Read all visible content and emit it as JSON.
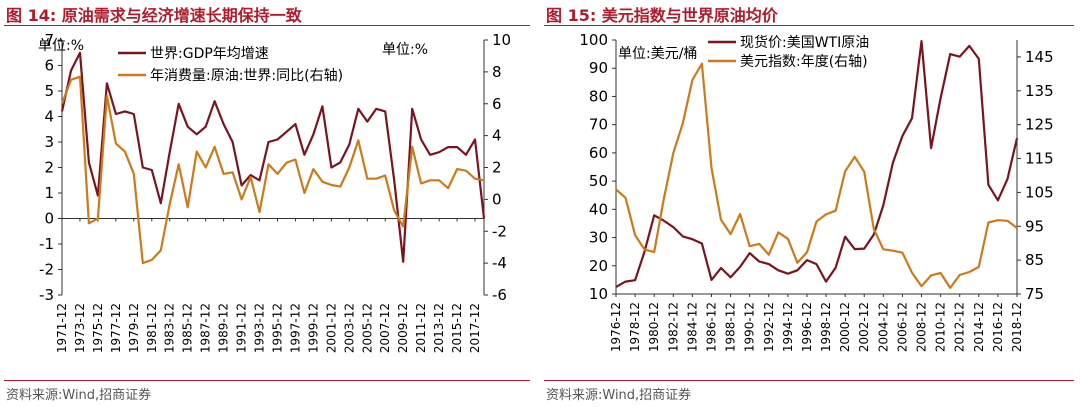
{
  "colors": {
    "red": "#b01c2e",
    "dark_red": "#7a1420",
    "orange": "#cc7a1a"
  },
  "left_panel": {
    "title": "图 14:  原油需求与经济增速长期保持一致",
    "source": "资料来源:Wind,招商证券"
  },
  "right_panel": {
    "title": "图 15:  美元指数与世界原油均价",
    "source": "资料来源:Wind,招商证券"
  },
  "chart_data": [
    {
      "type": "line",
      "title": "原油需求与经济增速长期保持一致",
      "unit_left": "单位:%",
      "unit_right": "单位:%",
      "x": [
        1971,
        1972,
        1973,
        1974,
        1975,
        1976,
        1977,
        1978,
        1979,
        1980,
        1981,
        1982,
        1983,
        1984,
        1985,
        1986,
        1987,
        1988,
        1989,
        1990,
        1991,
        1992,
        1993,
        1994,
        1995,
        1996,
        1997,
        1998,
        1999,
        2000,
        2001,
        2002,
        2003,
        2004,
        2005,
        2006,
        2007,
        2008,
        2009,
        2010,
        2011,
        2012,
        2013,
        2014,
        2015,
        2016,
        2017,
        2018
      ],
      "x_tick_labels": [
        "1971-12",
        "1973-12",
        "1975-12",
        "1977-12",
        "1979-12",
        "1981-12",
        "1983-12",
        "1985-12",
        "1987-12",
        "1989-12",
        "1991-12",
        "1993-12",
        "1995-12",
        "1997-12",
        "1999-12",
        "2001-12",
        "2003-12",
        "2005-12",
        "2007-12",
        "2009-12",
        "2011-12",
        "2013-12",
        "2015-12",
        "2017-12"
      ],
      "ylim_left": [
        -3,
        7
      ],
      "ylim_right": [
        -6,
        10
      ],
      "left_ticks": [
        "7",
        "6",
        "5",
        "4",
        "3",
        "2",
        "1",
        "0",
        "-1",
        "-2",
        "-3"
      ],
      "right_ticks": [
        "10",
        "8",
        "6",
        "4",
        "2",
        "0",
        "-2",
        "-4",
        "-6"
      ],
      "series": [
        {
          "name": "世界:GDP年均增速",
          "axis": "left",
          "color": "#7a1420",
          "values": [
            4.2,
            5.8,
            6.5,
            2.2,
            0.9,
            5.3,
            4.1,
            4.2,
            4.1,
            2.0,
            1.9,
            0.6,
            2.6,
            4.5,
            3.6,
            3.3,
            3.6,
            4.6,
            3.7,
            3.0,
            1.3,
            1.7,
            1.5,
            3.0,
            3.1,
            3.4,
            3.7,
            2.5,
            3.3,
            4.4,
            2.0,
            2.2,
            2.9,
            4.3,
            3.8,
            4.3,
            4.2,
            1.5,
            -1.7,
            4.3,
            3.1,
            2.5,
            2.6,
            2.8,
            2.8,
            2.5,
            3.1,
            0.0
          ]
        },
        {
          "name": "年消费量:原油:世界:同比(右轴)",
          "axis": "right",
          "color": "#cc7a1a",
          "values": [
            6.0,
            7.5,
            7.7,
            -1.5,
            -1.2,
            6.5,
            3.5,
            3.0,
            1.6,
            -4.0,
            -3.8,
            -3.2,
            -0.3,
            2.2,
            -0.5,
            3.0,
            2.0,
            3.3,
            1.6,
            1.7,
            0.0,
            1.4,
            -0.8,
            2.2,
            1.6,
            2.3,
            2.5,
            0.4,
            1.9,
            1.1,
            0.9,
            0.8,
            2.0,
            3.7,
            1.3,
            1.3,
            1.5,
            -0.7,
            -1.7,
            3.3,
            1.0,
            1.2,
            1.2,
            0.7,
            1.9,
            1.8,
            1.3,
            1.2
          ]
        }
      ]
    },
    {
      "type": "line",
      "title": "美元指数与世界原油均价",
      "unit_left": "单位:美元/桶",
      "x": [
        1976,
        1977,
        1978,
        1979,
        1980,
        1981,
        1982,
        1983,
        1984,
        1985,
        1986,
        1987,
        1988,
        1989,
        1990,
        1991,
        1992,
        1993,
        1994,
        1995,
        1996,
        1997,
        1998,
        1999,
        2000,
        2001,
        2002,
        2003,
        2004,
        2005,
        2006,
        2007,
        2008,
        2009,
        2010,
        2011,
        2012,
        2013,
        2014,
        2015,
        2016,
        2017,
        2018
      ],
      "x_tick_labels": [
        "1976-12",
        "1978-12",
        "1980-12",
        "1982-12",
        "1984-12",
        "1986-12",
        "1988-12",
        "1990-12",
        "1992-12",
        "1994-12",
        "1996-12",
        "1998-12",
        "2000-12",
        "2002-12",
        "2004-12",
        "2006-12",
        "2008-12",
        "2010-12",
        "2012-12",
        "2014-12",
        "2016-12",
        "2018-12"
      ],
      "ylim_left": [
        10,
        100
      ],
      "ylim_right": [
        75,
        150
      ],
      "left_ticks": [
        "100",
        "90",
        "80",
        "70",
        "60",
        "50",
        "40",
        "30",
        "20",
        "10"
      ],
      "right_ticks": [
        "145",
        "135",
        "125",
        "115",
        "105",
        "95",
        "85",
        "75"
      ],
      "series": [
        {
          "name": "现货价:美国WTI原油",
          "axis": "left",
          "color": "#7a1420",
          "values": [
            12.5,
            14.4,
            14.9,
            25.1,
            37.9,
            36.0,
            33.7,
            30.4,
            29.4,
            27.9,
            15.0,
            19.2,
            15.9,
            19.6,
            24.5,
            21.5,
            20.6,
            18.4,
            17.2,
            18.4,
            22.0,
            20.6,
            14.4,
            19.3,
            30.3,
            25.9,
            26.1,
            31.1,
            41.4,
            56.5,
            66.0,
            72.3,
            99.6,
            61.7,
            79.4,
            95.0,
            94.1,
            97.9,
            93.3,
            48.7,
            43.2,
            50.8,
            65.2
          ]
        },
        {
          "name": "美元指数:年度(右轴)",
          "axis": "right",
          "color": "#cc7a1a",
          "values": [
            105.9,
            103.4,
            92.4,
            88.1,
            87.4,
            102.9,
            116.6,
            125.4,
            138.2,
            143.0,
            112.2,
            96.9,
            92.7,
            98.6,
            89.1,
            89.8,
            86.6,
            93.2,
            91.3,
            84.2,
            87.3,
            96.4,
            98.5,
            99.6,
            111.2,
            115.5,
            111.1,
            94.2,
            88.2,
            87.8,
            87.2,
            81.3,
            77.3,
            80.5,
            81.2,
            76.8,
            80.6,
            81.5,
            83.0,
            96.1,
            96.8,
            96.6,
            94.5
          ]
        }
      ]
    }
  ]
}
